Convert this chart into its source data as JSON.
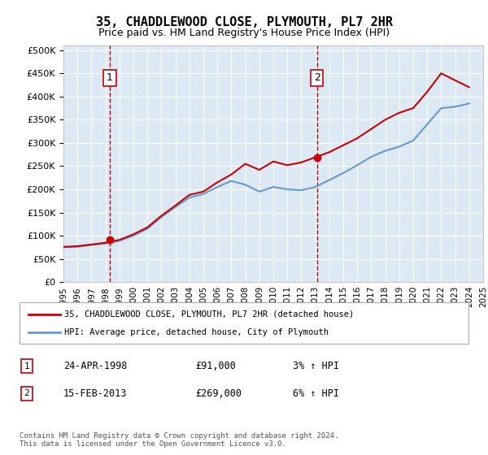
{
  "title": "35, CHADDLEWOOD CLOSE, PLYMOUTH, PL7 2HR",
  "subtitle": "Price paid vs. HM Land Registry's House Price Index (HPI)",
  "background_color": "#dce9f5",
  "plot_bg_color": "#dce9f5",
  "x_start": 1995,
  "x_end": 2025,
  "y_min": 0,
  "y_max": 500000,
  "y_ticks": [
    0,
    50000,
    100000,
    150000,
    200000,
    250000,
    300000,
    350000,
    400000,
    450000,
    500000
  ],
  "x_ticks": [
    1995,
    1996,
    1997,
    1998,
    1999,
    2000,
    2001,
    2002,
    2003,
    2004,
    2005,
    2006,
    2007,
    2008,
    2009,
    2010,
    2011,
    2012,
    2013,
    2014,
    2015,
    2016,
    2017,
    2018,
    2019,
    2020,
    2021,
    2022,
    2023,
    2024,
    2025
  ],
  "sale1_x": 1998.31,
  "sale1_y": 91000,
  "sale2_x": 2013.12,
  "sale2_y": 269000,
  "sale1_label": "1",
  "sale2_label": "2",
  "legend_line1": "35, CHADDLEWOOD CLOSE, PLYMOUTH, PL7 2HR (detached house)",
  "legend_line2": "HPI: Average price, detached house, City of Plymouth",
  "table_row1_num": "1",
  "table_row1_date": "24-APR-1998",
  "table_row1_price": "£91,000",
  "table_row1_hpi": "3% ↑ HPI",
  "table_row2_num": "2",
  "table_row2_date": "15-FEB-2013",
  "table_row2_price": "£269,000",
  "table_row2_hpi": "6% ↑ HPI",
  "footer": "Contains HM Land Registry data © Crown copyright and database right 2024.\nThis data is licensed under the Open Government Licence v3.0.",
  "line_color": "#cc0000",
  "hpi_color": "#6699cc",
  "vline_color": "#cc0000",
  "hpi_line": [
    [
      1995.0,
      75000
    ],
    [
      1996.0,
      76000
    ],
    [
      1997.0,
      80000
    ],
    [
      1998.0,
      83000
    ],
    [
      1999.0,
      89000
    ],
    [
      2000.0,
      100000
    ],
    [
      2001.0,
      115000
    ],
    [
      2002.0,
      140000
    ],
    [
      2003.0,
      162000
    ],
    [
      2004.0,
      182000
    ],
    [
      2005.0,
      190000
    ],
    [
      2006.0,
      205000
    ],
    [
      2007.0,
      218000
    ],
    [
      2008.0,
      210000
    ],
    [
      2009.0,
      195000
    ],
    [
      2010.0,
      205000
    ],
    [
      2011.0,
      200000
    ],
    [
      2012.0,
      198000
    ],
    [
      2013.0,
      205000
    ],
    [
      2014.0,
      220000
    ],
    [
      2015.0,
      235000
    ],
    [
      2016.0,
      252000
    ],
    [
      2017.0,
      270000
    ],
    [
      2018.0,
      283000
    ],
    [
      2019.0,
      292000
    ],
    [
      2020.0,
      305000
    ],
    [
      2021.0,
      340000
    ],
    [
      2022.0,
      375000
    ],
    [
      2023.0,
      378000
    ],
    [
      2024.0,
      385000
    ]
  ],
  "price_line": [
    [
      1995.0,
      76000
    ],
    [
      1996.0,
      77500
    ],
    [
      1997.0,
      81000
    ],
    [
      1998.0,
      85000
    ],
    [
      1999.0,
      91000
    ],
    [
      2000.0,
      103000
    ],
    [
      2001.0,
      118000
    ],
    [
      2002.0,
      143000
    ],
    [
      2003.0,
      165000
    ],
    [
      2004.0,
      188000
    ],
    [
      2005.0,
      195000
    ],
    [
      2006.0,
      215000
    ],
    [
      2007.0,
      232000
    ],
    [
      2008.0,
      255000
    ],
    [
      2009.0,
      242000
    ],
    [
      2010.0,
      260000
    ],
    [
      2011.0,
      252000
    ],
    [
      2012.0,
      258000
    ],
    [
      2013.0,
      269000
    ],
    [
      2014.0,
      280000
    ],
    [
      2015.0,
      295000
    ],
    [
      2016.0,
      310000
    ],
    [
      2017.0,
      330000
    ],
    [
      2018.0,
      350000
    ],
    [
      2019.0,
      365000
    ],
    [
      2020.0,
      375000
    ],
    [
      2021.0,
      410000
    ],
    [
      2022.0,
      450000
    ],
    [
      2023.0,
      435000
    ],
    [
      2024.0,
      420000
    ]
  ]
}
